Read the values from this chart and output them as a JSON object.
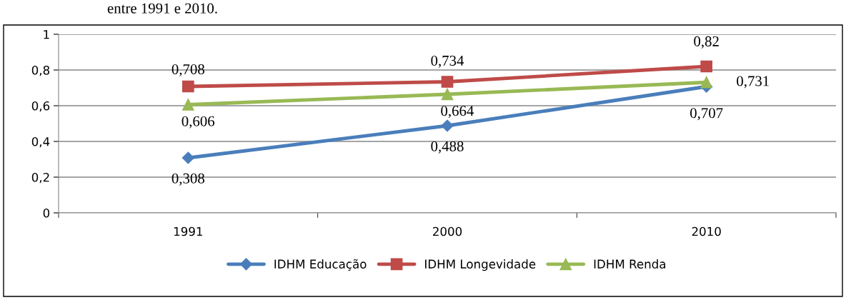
{
  "chart_data": {
    "type": "line",
    "annotations": [
      "entre 1991 e 2010."
    ],
    "categories": [
      "1991",
      "2000",
      "2010"
    ],
    "series": [
      {
        "name": "IDHM Educação",
        "color": "#4a7ebb",
        "values": [
          0.308,
          0.488,
          0.707
        ],
        "value_labels": [
          "0,308",
          "0,488",
          "0,707"
        ],
        "marker": "diamond"
      },
      {
        "name": "IDHM Longevidade",
        "color": "#be4b48",
        "values": [
          0.708,
          0.734,
          0.82
        ],
        "value_labels": [
          "0,708",
          "0,734",
          "0,82"
        ],
        "marker": "square"
      },
      {
        "name": "IDHM Renda",
        "color": "#98b954",
        "values": [
          0.606,
          0.664,
          0.731
        ],
        "value_labels": [
          "0,606",
          "0,664",
          "0,731"
        ],
        "marker": "triangle"
      }
    ],
    "ylim": [
      0,
      1
    ],
    "yticks": [
      {
        "value": 0,
        "label": "0"
      },
      {
        "value": 0.2,
        "label": "0,2"
      },
      {
        "value": 0.4,
        "label": "0,4"
      },
      {
        "value": 0.6,
        "label": "0,6"
      },
      {
        "value": 0.8,
        "label": "0,8"
      },
      {
        "value": 1,
        "label": "1"
      }
    ],
    "grid": "y",
    "legend": "bottom",
    "line_style": "solid"
  }
}
